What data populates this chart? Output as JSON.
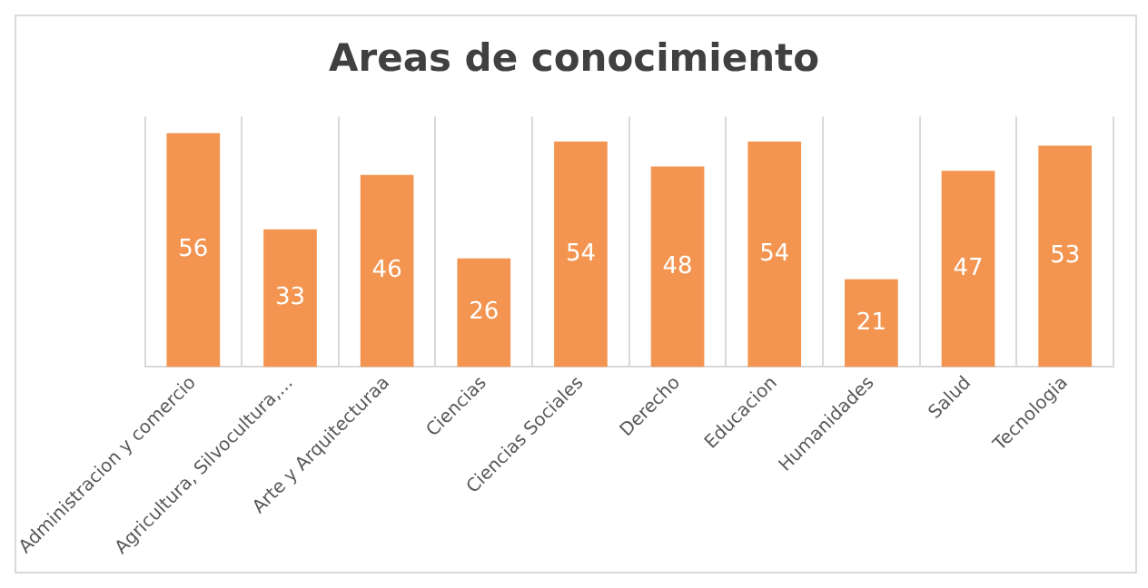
{
  "chart_data": {
    "type": "bar",
    "title": "Areas de conocimiento",
    "categories": [
      "Administracion y comercio",
      "Agricultura, Silvocultura,...",
      "Arte y Arquitecturaa",
      "Ciencias",
      "Ciencias Sociales",
      "Derecho",
      "Educacion",
      "Humanidades",
      "Salud",
      "Tecnologia"
    ],
    "values": [
      56,
      33,
      46,
      26,
      54,
      48,
      54,
      21,
      47,
      53
    ],
    "color": "#f39550",
    "data_labels": true,
    "ylim": [
      0,
      60
    ],
    "grid": "x",
    "tick_labels": "x",
    "legend": false
  }
}
